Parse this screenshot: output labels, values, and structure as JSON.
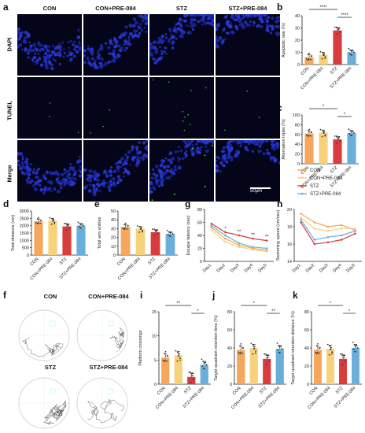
{
  "panel_letters": {
    "a": "a",
    "b": "b",
    "c": "c",
    "d": "d",
    "e": "e",
    "f": "f",
    "g": "g",
    "h": "h",
    "i": "i",
    "j": "j",
    "k": "k"
  },
  "micro": {
    "columns": [
      "CON",
      "CON+PRE-084",
      "STZ",
      "STZ+PRE-084"
    ],
    "rows": [
      "DAPI",
      "TUNEL",
      "Merge"
    ],
    "scale_label": "50μm"
  },
  "legend": {
    "entries": [
      "CON",
      "CON+PRE-084",
      "STZ",
      "STZ+PRE-084"
    ]
  },
  "tracks": {
    "labels": [
      "CON",
      "CON+PRE-084",
      "STZ",
      "STZ+PRE-084"
    ]
  },
  "colors": {
    "CON": "#f5a75b",
    "CON+PRE-084": "#f7d27a",
    "STZ": "#d83c3c",
    "STZ+PRE-084": "#6aaedc"
  },
  "chart_data": [
    {
      "id": "b",
      "type": "bar",
      "categories": [
        "CON",
        "CON+PRE-084",
        "STZ",
        "STZ+PRE-084"
      ],
      "values": [
        6,
        8,
        28,
        10
      ],
      "ylabel": "Apoptotic rate (%)",
      "ylim": [
        0,
        40
      ],
      "yticks": [
        0,
        10,
        20,
        30,
        40
      ],
      "significance": [
        {
          "pair": [
            0,
            2
          ],
          "label": "****"
        },
        {
          "pair": [
            2,
            3
          ],
          "label": "****"
        }
      ]
    },
    {
      "id": "c",
      "type": "bar",
      "categories": [
        "CON",
        "CON+PRE-084",
        "STZ",
        "STZ+PRE-084"
      ],
      "values": [
        62,
        64,
        50,
        63
      ],
      "ylabel": "Alternation triplet (%)",
      "ylim": [
        0,
        100
      ],
      "yticks": [
        0,
        20,
        40,
        60,
        80,
        100
      ],
      "significance": [
        {
          "pair": [
            0,
            2
          ],
          "label": "*"
        },
        {
          "pair": [
            2,
            3
          ],
          "label": "*"
        }
      ]
    },
    {
      "id": "d",
      "type": "bar",
      "categories": [
        "CON",
        "CON+PRE-084",
        "STZ",
        "STZ+PRE-084"
      ],
      "values": [
        2300,
        2350,
        1950,
        2000
      ],
      "ylabel": "Total distance (cm)",
      "ylim": [
        0,
        3000
      ],
      "yticks": [
        0,
        500,
        1000,
        1500,
        2000,
        2500,
        3000
      ],
      "significance": []
    },
    {
      "id": "e",
      "type": "bar",
      "categories": [
        "CON",
        "CON+PRE-084",
        "STZ",
        "STZ+PRE-084"
      ],
      "values": [
        32,
        30,
        26,
        24
      ],
      "ylabel": "Total arm entries",
      "ylim": [
        0,
        50
      ],
      "yticks": [
        0,
        10,
        20,
        30,
        40,
        50
      ],
      "significance": []
    },
    {
      "id": "g",
      "type": "line",
      "x": [
        "Day1",
        "Day2",
        "Day3",
        "Day4",
        "Day5"
      ],
      "ylabel": "Escape latency (sec)",
      "ylim": [
        0,
        80
      ],
      "yticks": [
        0,
        20,
        40,
        60,
        80
      ],
      "series": [
        {
          "name": "CON",
          "values": [
            52,
            35,
            25,
            20,
            17
          ]
        },
        {
          "name": "CON+PRE-084",
          "values": [
            48,
            30,
            22,
            18,
            15
          ]
        },
        {
          "name": "STZ",
          "values": [
            58,
            45,
            40,
            35,
            32
          ]
        },
        {
          "name": "STZ+PRE-084",
          "values": [
            55,
            40,
            28,
            22,
            20
          ]
        }
      ],
      "annotations": [
        "*",
        "**",
        "**",
        "**"
      ]
    },
    {
      "id": "h",
      "type": "line",
      "x": [
        "Day1",
        "Day2",
        "Day3",
        "Day4",
        "Day5"
      ],
      "ylabel": "Swimming speed (cm/sec)",
      "ylim": [
        14,
        20
      ],
      "yticks": [
        14,
        16,
        18,
        20
      ],
      "series": [
        {
          "name": "CON",
          "values": [
            19.5,
            18.5,
            18.0,
            18.2,
            17.6
          ]
        },
        {
          "name": "CON+PRE-084",
          "values": [
            19.0,
            17.8,
            17.5,
            17.8,
            17.8
          ]
        },
        {
          "name": "STZ",
          "values": [
            18.5,
            16.0,
            16.2,
            16.5,
            17.2
          ]
        },
        {
          "name": "STZ+PRE-084",
          "values": [
            18.8,
            16.5,
            16.8,
            17.0,
            17.5
          ]
        }
      ]
    },
    {
      "id": "i",
      "type": "bar",
      "categories": [
        "CON",
        "CON+PRE-084",
        "STZ",
        "STZ+PRE-084"
      ],
      "values": [
        5.5,
        6.0,
        1.5,
        4.0
      ],
      "ylabel": "Platform crossings",
      "ylim": [
        0,
        15
      ],
      "yticks": [
        0,
        5,
        10,
        15
      ],
      "significance": [
        {
          "pair": [
            0,
            2
          ],
          "label": "**"
        },
        {
          "pair": [
            2,
            3
          ],
          "label": "*"
        }
      ]
    },
    {
      "id": "j",
      "type": "bar",
      "categories": [
        "CON",
        "CON+PRE-084",
        "STZ",
        "STZ+PRE-084"
      ],
      "values": [
        38,
        40,
        28,
        39
      ],
      "ylabel": "Target quadrant retention time (%)",
      "ylim": [
        0,
        80
      ],
      "yticks": [
        0,
        20,
        40,
        60,
        80
      ],
      "significance": [
        {
          "pair": [
            0,
            2
          ],
          "label": "*"
        },
        {
          "pair": [
            2,
            3
          ],
          "label": "**"
        }
      ]
    },
    {
      "id": "k",
      "type": "bar",
      "categories": [
        "CON",
        "CON+PRE-084",
        "STZ",
        "STZ+PRE-084"
      ],
      "values": [
        38,
        39,
        28,
        40
      ],
      "ylabel": "Target quadrant retention distance (%)",
      "ylim": [
        0,
        80
      ],
      "yticks": [
        0,
        20,
        40,
        60,
        80
      ],
      "significance": [
        {
          "pair": [
            0,
            2
          ],
          "label": "*"
        },
        {
          "pair": [
            2,
            3
          ],
          "label": "*"
        }
      ]
    }
  ]
}
